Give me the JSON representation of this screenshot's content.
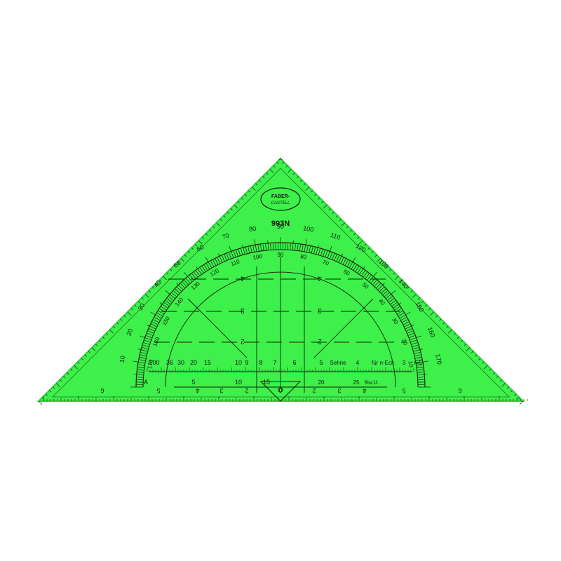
{
  "colors": {
    "background": "#ffffff",
    "plastic": "#3df04a",
    "plastic_edge": "#2fcf3b",
    "ink": "#14210f"
  },
  "logo": {
    "line1": "FABER-",
    "line2": "CASTELL"
  },
  "model": "993N",
  "protractor": {
    "outer_labels": [
      "10",
      "20",
      "30",
      "40",
      "50",
      "60",
      "70",
      "80",
      "90",
      "100",
      "110",
      "120",
      "130",
      "140",
      "150",
      "160",
      "170"
    ],
    "inner_labels": [
      "170",
      "160",
      "150",
      "140",
      "130",
      "120",
      "110",
      "100",
      "90",
      "80",
      "70",
      "60",
      "50",
      "40",
      "30",
      "20",
      "10"
    ]
  },
  "scales": {
    "left_top": [
      "100",
      "36",
      "30",
      "20",
      "15",
      "10",
      "9",
      "8",
      "7",
      "6",
      "5"
    ],
    "right_top": [
      "Sehne",
      "4",
      "für n-Eck",
      "3",
      "r=5"
    ],
    "bottom_left": [
      "A",
      "5",
      "10",
      "15"
    ],
    "bottom_right": [
      "20",
      "25",
      "%v.U."
    ],
    "grid_numbers_left": [
      "4",
      "3",
      "2"
    ],
    "grid_numbers_right": [
      "4",
      "3",
      "2"
    ],
    "center_zero": "0",
    "edge_left": [
      "6",
      "5",
      "4",
      "3",
      "2"
    ],
    "edge_right": [
      "2",
      "3",
      "4",
      "5",
      "6"
    ]
  }
}
